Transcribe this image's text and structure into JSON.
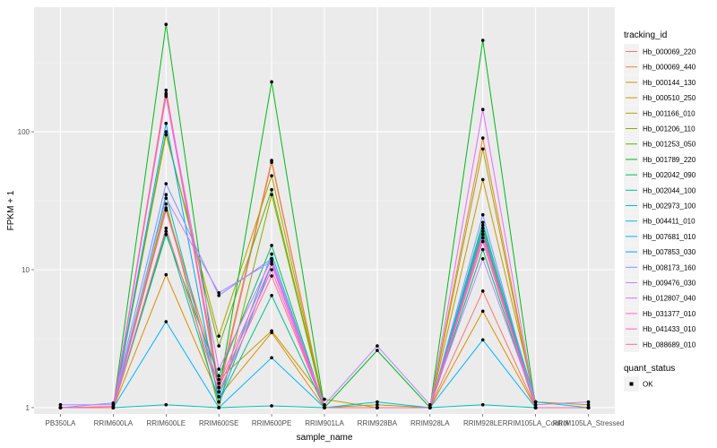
{
  "chart_data": {
    "type": "line",
    "xlabel": "sample_name",
    "ylabel": "FPKM + 1",
    "yscale": "log10",
    "ylim": [
      0.9,
      800
    ],
    "yticks": [
      1,
      10,
      100
    ],
    "ytick_labels": [
      "1",
      "10",
      "100"
    ],
    "grid": true,
    "legend_position": "right",
    "categories": [
      "PB350LA",
      "RRIM600LA",
      "RRIM600LE",
      "RRIM600SE",
      "RRIM600PE",
      "RRIM901LA",
      "RRIM928BA",
      "RRIM928LA",
      "RRIM928LE",
      "RRIM105LA_Control",
      "RRIM105LA_Stressed"
    ],
    "legend_title": "tracking_id",
    "series": [
      {
        "name": "Hb_000069_220",
        "color": "#F8766D",
        "values": [
          1.0,
          1.02,
          190,
          1.3,
          60,
          1.0,
          1.0,
          1.0,
          7.0,
          1.0,
          1.0
        ]
      },
      {
        "name": "Hb_000069_440",
        "color": "#EC8239",
        "values": [
          1.0,
          1.0,
          200,
          1.4,
          62,
          1.0,
          1.0,
          1.0,
          90,
          1.0,
          1.0
        ]
      },
      {
        "name": "Hb_000144_130",
        "color": "#DB8E00",
        "values": [
          1.0,
          1.0,
          9.2,
          1.2,
          3.5,
          1.0,
          1.0,
          1.0,
          5.0,
          1.0,
          1.0
        ]
      },
      {
        "name": "Hb_000510_250",
        "color": "#C79800",
        "values": [
          1.0,
          1.0,
          28,
          1.6,
          3.6,
          1.15,
          1.0,
          1.0,
          45,
          1.1,
          1.05
        ]
      },
      {
        "name": "Hb_001166_010",
        "color": "#AEA200",
        "values": [
          1.0,
          1.0,
          95,
          3.3,
          48,
          1.0,
          1.05,
          1.0,
          75,
          1.0,
          1.0
        ]
      },
      {
        "name": "Hb_001206_110",
        "color": "#8FAA00",
        "values": [
          1.0,
          1.0,
          30,
          1.0,
          35,
          1.0,
          1.0,
          1.0,
          20,
          1.0,
          1.0
        ]
      },
      {
        "name": "Hb_001253_050",
        "color": "#64B200",
        "values": [
          1.0,
          1.0,
          100,
          2.8,
          38,
          1.0,
          1.0,
          1.0,
          18,
          1.0,
          1.0
        ]
      },
      {
        "name": "Hb_001789_220",
        "color": "#00B81B",
        "values": [
          1.0,
          1.0,
          600,
          1.3,
          230,
          1.0,
          2.6,
          1.0,
          460,
          1.0,
          1.0
        ]
      },
      {
        "name": "Hb_002042_090",
        "color": "#00BD5C",
        "values": [
          1.0,
          1.0,
          18,
          1.7,
          15,
          1.0,
          1.0,
          1.0,
          14,
          1.0,
          1.0
        ]
      },
      {
        "name": "Hb_002044_100",
        "color": "#00C08E",
        "values": [
          1.0,
          1.0,
          19,
          1.1,
          6.5,
          1.0,
          1.0,
          1.0,
          22,
          1.0,
          1.0
        ]
      },
      {
        "name": "Hb_002973_100",
        "color": "#00C1B7",
        "values": [
          1.0,
          1.0,
          1.05,
          1.0,
          1.03,
          1.0,
          1.0,
          1.0,
          1.05,
          1.0,
          1.0
        ]
      },
      {
        "name": "Hb_004411_010",
        "color": "#00BDDC",
        "values": [
          1.0,
          1.0,
          35,
          1.2,
          13,
          1.0,
          1.1,
          1.0,
          21,
          1.1,
          1.0
        ]
      },
      {
        "name": "Hb_007681_010",
        "color": "#00B5F9",
        "values": [
          1.0,
          1.0,
          4.2,
          1.0,
          2.3,
          1.0,
          1.0,
          1.0,
          3.1,
          1.0,
          1.0
        ]
      },
      {
        "name": "Hb_007853_030",
        "color": "#00A5FF",
        "values": [
          1.0,
          1.0,
          115,
          1.1,
          11,
          1.0,
          1.0,
          1.0,
          19,
          1.0,
          1.0
        ]
      },
      {
        "name": "Hb_008173_160",
        "color": "#7C96FF",
        "values": [
          1.0,
          1.08,
          42,
          6.5,
          12,
          1.0,
          1.0,
          1.0,
          25,
          1.0,
          1.0
        ]
      },
      {
        "name": "Hb_009476_030",
        "color": "#BB83FF",
        "values": [
          1.05,
          1.05,
          33,
          6.8,
          11.5,
          1.05,
          2.8,
          1.05,
          12,
          1.05,
          1.1
        ]
      },
      {
        "name": "Hb_012807_040",
        "color": "#E16EF7",
        "values": [
          1.0,
          1.0,
          185,
          1.9,
          12,
          1.0,
          1.0,
          1.0,
          145,
          1.0,
          1.0
        ]
      },
      {
        "name": "Hb_031377_010",
        "color": "#F863DF",
        "values": [
          1.0,
          1.0,
          180,
          1.5,
          11,
          1.0,
          1.0,
          1.0,
          16,
          1.0,
          1.0
        ]
      },
      {
        "name": "Hb_041433_010",
        "color": "#FF61C0",
        "values": [
          1.0,
          1.0,
          27,
          1.4,
          10,
          1.0,
          1.0,
          1.0,
          18,
          1.0,
          1.0
        ]
      },
      {
        "name": "Hb_088689_010",
        "color": "#FF6A98",
        "values": [
          1.0,
          1.0,
          20,
          1.3,
          9,
          1.0,
          1.0,
          1.0,
          17,
          1.0,
          1.0
        ]
      }
    ],
    "quant_legend": {
      "title": "quant_status",
      "entries": [
        "OK"
      ]
    }
  }
}
